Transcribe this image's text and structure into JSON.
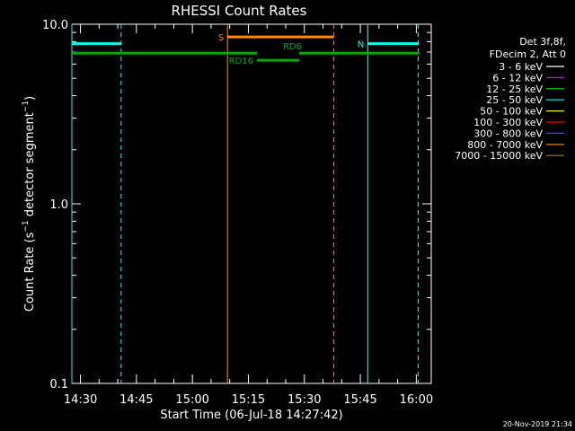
{
  "chart_data": {
    "type": "line",
    "title": "RHESSI Count Rates",
    "xlabel": "Start Time (06-Jul-18 14:27:42)",
    "ylabel": {
      "main": "Count Rate (s",
      "sup1": "−1",
      "mid": " detector segment",
      "sup2": "−1",
      "end": ")"
    },
    "x_unit": "minutes since 14:27:42",
    "xlim": [
      0,
      96.3
    ],
    "ylim": [
      0.1,
      10.0
    ],
    "y_scale": "log",
    "y_ticks": [
      {
        "value": 0.1,
        "label": "0.1"
      },
      {
        "value": 1.0,
        "label": "1.0"
      },
      {
        "value": 10.0,
        "label": "10.0"
      }
    ],
    "x_ticks": [
      {
        "minute": 2.3,
        "label": "14:30"
      },
      {
        "minute": 17.3,
        "label": "14:45"
      },
      {
        "minute": 32.3,
        "label": "15:00"
      },
      {
        "minute": 47.3,
        "label": "15:15"
      },
      {
        "minute": 62.3,
        "label": "15:30"
      },
      {
        "minute": 77.3,
        "label": "15:45"
      },
      {
        "minute": 92.3,
        "label": "16:00"
      }
    ],
    "legend_placement": "top-right",
    "legend_header": [
      "Det 3f,8f,",
      "FDecim 2, Att 0"
    ],
    "legend": [
      {
        "name": "3 - 6 keV",
        "color": "#ffffff"
      },
      {
        "name": "6 - 12 keV",
        "color": "#e100e1"
      },
      {
        "name": "12 - 25 keV",
        "color": "#00e100"
      },
      {
        "name": "25 - 50 keV",
        "color": "#00ffff"
      },
      {
        "name": "50 - 100 keV",
        "color": "#ffff00"
      },
      {
        "name": "100 - 300 keV",
        "color": "#ff0000"
      },
      {
        "name": "300 - 800 keV",
        "color": "#4040ff"
      },
      {
        "name": "800 - 7000 keV",
        "color": "#ff8c00"
      },
      {
        "name": "7000 - 15000 keV",
        "color": "#9a8000"
      }
    ],
    "spans": [
      {
        "label": "",
        "color": "#00ffff",
        "width": 3,
        "y": 7.8,
        "x0": 0.0,
        "x1": 13.2
      },
      {
        "label": "N",
        "color": "#00ffff",
        "width": 3,
        "y": 7.8,
        "x0": 79.3,
        "x1": 92.8,
        "label_at": "left"
      },
      {
        "label": "S",
        "color": "#ff8c00",
        "width": 3,
        "y": 8.5,
        "x0": 41.7,
        "x1": 70.2,
        "label_at": "left"
      },
      {
        "label": "",
        "color": "#00aa00",
        "width": 3,
        "y": 6.9,
        "x0": 0.0,
        "x1": 49.6
      },
      {
        "label": "RD6",
        "color": "#00aa00",
        "width": 3,
        "y": 6.9,
        "x0": 60.9,
        "x1": 93.1,
        "label_at": "above-left"
      },
      {
        "label": "RD16",
        "color": "#00aa00",
        "width": 3,
        "y": 6.3,
        "x0": 49.6,
        "x1": 60.9,
        "label_at": "left"
      }
    ],
    "vlines": [
      {
        "x": 0.0,
        "color": "#00ffff",
        "dash": false
      },
      {
        "x": 13.2,
        "color": "#00ffff",
        "dash": true
      },
      {
        "x": 41.7,
        "color": "#ff8c00",
        "dash": false
      },
      {
        "x": 70.2,
        "color": "#ff8c00",
        "dash": true
      },
      {
        "x": 79.3,
        "color": "#00ffff",
        "dash": false
      },
      {
        "x": 92.8,
        "color": "#00ffff",
        "dash": true
      }
    ]
  },
  "footer_timestamp": "20-Nov-2019 21:34"
}
